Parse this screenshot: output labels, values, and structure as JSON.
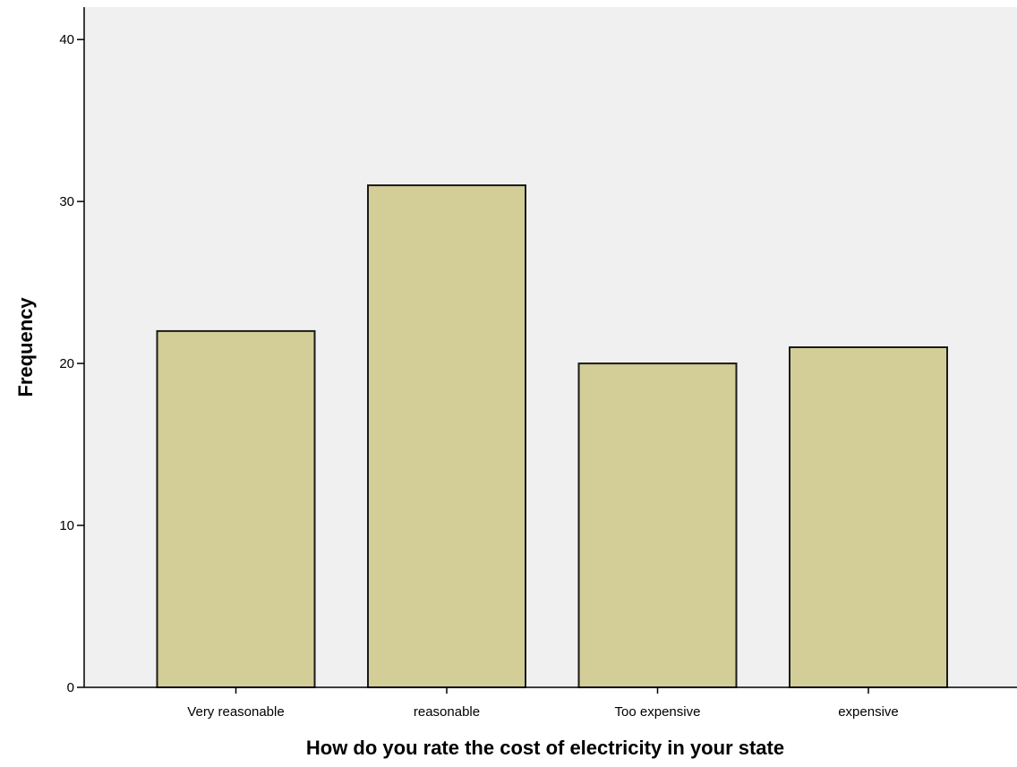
{
  "chart_data": {
    "type": "bar",
    "title": "",
    "categories": [
      "Very reasonable",
      "reasonable",
      "Too expensive",
      "expensive"
    ],
    "values": [
      22,
      31,
      20,
      21
    ],
    "xlabel": "How do you rate the cost of electricity in your state",
    "ylabel": "Frequency",
    "ylim": [
      0,
      42
    ],
    "yticks": [
      0,
      10,
      20,
      30,
      40
    ],
    "grid": false,
    "legend": "none",
    "colors": {
      "plot_background": "#f0f0f0",
      "bar_fill": "#d3ce97",
      "bar_stroke": "#1a1a1a",
      "axis": "#000000"
    }
  }
}
